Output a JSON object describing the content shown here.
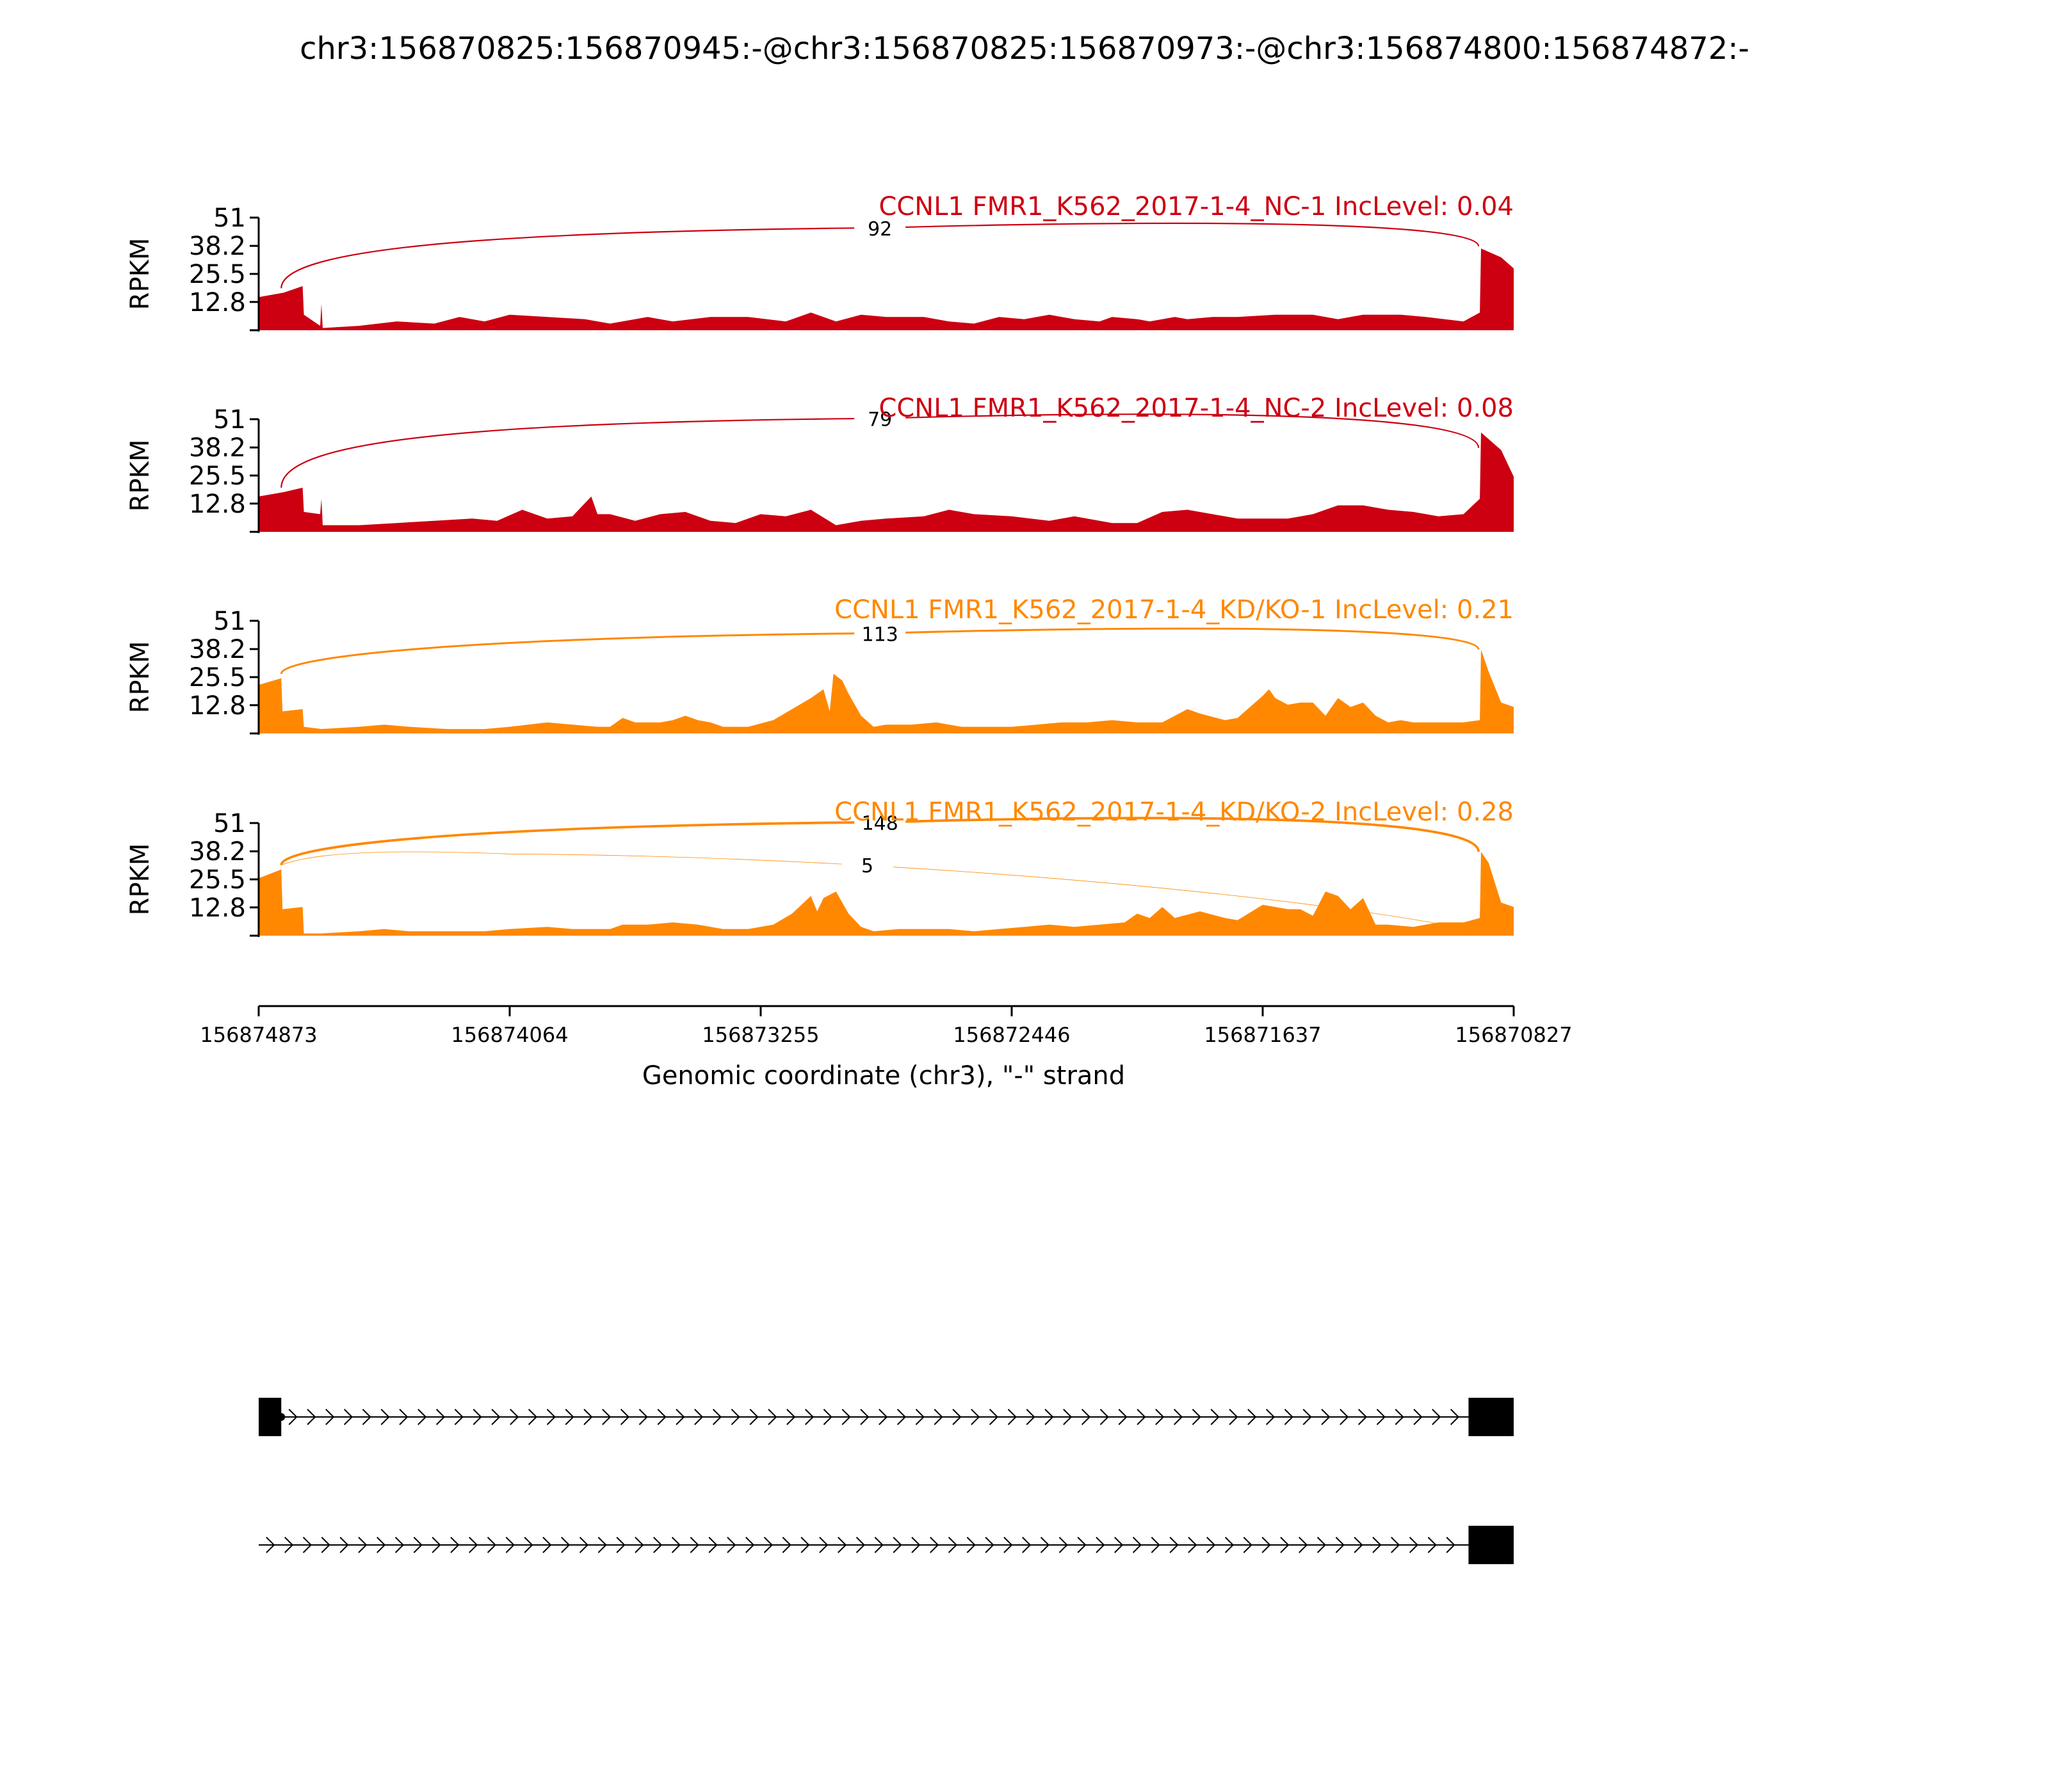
{
  "title": "chr3:156870825:156870945:-@chr3:156870825:156870973:-@chr3:156874800:156874872:-",
  "colors": {
    "nc": "#cc0011",
    "kd": "#ff8800",
    "axis": "#000000"
  },
  "chart_data": {
    "type": "area",
    "title": "chr3:156870825:156870945:-@chr3:156870825:156870973:-@chr3:156874800:156874872:-",
    "xlabel": "Genomic coordinate (chr3), \"-\" strand",
    "ylabel": "RPKM",
    "xlim": [
      156874873,
      156870827
    ],
    "x_ticks": [
      "156874873",
      "156874064",
      "156873255",
      "156872446",
      "156871637",
      "156870827"
    ],
    "ylim": [
      0,
      51
    ],
    "y_ticks": [
      "51",
      "38.2",
      "25.5",
      "12.8"
    ],
    "tracks": [
      {
        "label": "CCNL1 FMR1_K562_2017-1-4_NC-1 IncLevel: 0.04",
        "color_key": "nc",
        "cov_profile": [
          [
            0,
            15
          ],
          [
            2,
            17
          ],
          [
            3.5,
            20
          ],
          [
            3.6,
            7
          ],
          [
            4.9,
            2
          ],
          [
            5,
            12
          ],
          [
            5.1,
            1
          ],
          [
            8,
            2
          ],
          [
            11,
            4
          ],
          [
            14,
            3
          ],
          [
            16,
            6
          ],
          [
            18,
            4
          ],
          [
            20,
            7
          ],
          [
            23,
            6
          ],
          [
            26,
            5
          ],
          [
            28,
            3
          ],
          [
            31,
            6
          ],
          [
            33,
            4
          ],
          [
            36,
            6
          ],
          [
            39,
            6
          ],
          [
            42,
            4
          ],
          [
            44,
            8
          ],
          [
            46,
            4
          ],
          [
            48,
            7
          ],
          [
            50,
            6
          ],
          [
            53,
            6
          ],
          [
            55,
            4
          ],
          [
            57,
            3
          ],
          [
            59,
            6
          ],
          [
            61,
            5
          ],
          [
            63,
            7
          ],
          [
            65,
            5
          ],
          [
            67,
            4
          ],
          [
            68,
            6
          ],
          [
            70,
            5
          ],
          [
            71,
            4
          ],
          [
            73,
            6
          ],
          [
            74,
            5
          ],
          [
            76,
            6
          ],
          [
            78,
            6
          ],
          [
            81,
            7
          ],
          [
            84,
            7
          ],
          [
            86,
            5
          ],
          [
            88,
            7
          ],
          [
            91,
            7
          ],
          [
            93,
            6
          ],
          [
            96,
            4
          ],
          [
            97.3,
            8
          ],
          [
            97.4,
            37
          ],
          [
            99,
            33
          ],
          [
            100,
            28
          ]
        ],
        "junctions": [
          {
            "from": 1.8,
            "to": 97.2,
            "count": "92",
            "peak": 47,
            "lw": 2.2
          }
        ]
      },
      {
        "label": "CCNL1 FMR1_K562_2017-1-4_NC-2 IncLevel: 0.08",
        "color_key": "nc",
        "cov_profile": [
          [
            0,
            16
          ],
          [
            2,
            18
          ],
          [
            3.5,
            20
          ],
          [
            3.6,
            9
          ],
          [
            4.9,
            8
          ],
          [
            5,
            15
          ],
          [
            5.1,
            3
          ],
          [
            8,
            3
          ],
          [
            11,
            4
          ],
          [
            14,
            5
          ],
          [
            17,
            6
          ],
          [
            19,
            5
          ],
          [
            21,
            10
          ],
          [
            23,
            6
          ],
          [
            25,
            7
          ],
          [
            26.5,
            16
          ],
          [
            27,
            8
          ],
          [
            28,
            8
          ],
          [
            30,
            5
          ],
          [
            32,
            8
          ],
          [
            34,
            9
          ],
          [
            36,
            5
          ],
          [
            38,
            4
          ],
          [
            40,
            8
          ],
          [
            42,
            7
          ],
          [
            44,
            10
          ],
          [
            46,
            3
          ],
          [
            48,
            5
          ],
          [
            50,
            6
          ],
          [
            53,
            7
          ],
          [
            55,
            10
          ],
          [
            57,
            8
          ],
          [
            60,
            7
          ],
          [
            63,
            5
          ],
          [
            65,
            7
          ],
          [
            68,
            4
          ],
          [
            70,
            4
          ],
          [
            72,
            9
          ],
          [
            74,
            10
          ],
          [
            76,
            8
          ],
          [
            78,
            6
          ],
          [
            80,
            6
          ],
          [
            82,
            6
          ],
          [
            84,
            8
          ],
          [
            86,
            12
          ],
          [
            88,
            12
          ],
          [
            90,
            10
          ],
          [
            92,
            9
          ],
          [
            94,
            7
          ],
          [
            96,
            8
          ],
          [
            97.3,
            15
          ],
          [
            97.4,
            45
          ],
          [
            99,
            37
          ],
          [
            100,
            25
          ]
        ],
        "junctions": [
          {
            "from": 1.8,
            "to": 97.2,
            "count": "79",
            "peak": 52,
            "lw": 2.2
          }
        ]
      },
      {
        "label": "CCNL1 FMR1_K562_2017-1-4_KD/KO-1 IncLevel: 0.21",
        "color_key": "kd",
        "cov_profile": [
          [
            0,
            22
          ],
          [
            1.8,
            25
          ],
          [
            1.9,
            10
          ],
          [
            3.5,
            11
          ],
          [
            3.6,
            3
          ],
          [
            5,
            2
          ],
          [
            8,
            3
          ],
          [
            10,
            4
          ],
          [
            12,
            3
          ],
          [
            15,
            2
          ],
          [
            18,
            2
          ],
          [
            20,
            3
          ],
          [
            23,
            5
          ],
          [
            25,
            4
          ],
          [
            27,
            3
          ],
          [
            28,
            3
          ],
          [
            29,
            7
          ],
          [
            30,
            5
          ],
          [
            32,
            5
          ],
          [
            33,
            6
          ],
          [
            34,
            8
          ],
          [
            35,
            6
          ],
          [
            36,
            5
          ],
          [
            37,
            3
          ],
          [
            39,
            3
          ],
          [
            41,
            6
          ],
          [
            42.5,
            11
          ],
          [
            44,
            16
          ],
          [
            45,
            20
          ],
          [
            45.5,
            10
          ],
          [
            45.8,
            27
          ],
          [
            46.5,
            24
          ],
          [
            47,
            18
          ],
          [
            48,
            8
          ],
          [
            49,
            3
          ],
          [
            50,
            4
          ],
          [
            52,
            4
          ],
          [
            54,
            5
          ],
          [
            56,
            3
          ],
          [
            58,
            3
          ],
          [
            60,
            3
          ],
          [
            62,
            4
          ],
          [
            64,
            5
          ],
          [
            66,
            5
          ],
          [
            68,
            6
          ],
          [
            70,
            5
          ],
          [
            72,
            5
          ],
          [
            73,
            8
          ],
          [
            74,
            11
          ],
          [
            75,
            9
          ],
          [
            77,
            6
          ],
          [
            78,
            7
          ],
          [
            80,
            17
          ],
          [
            80.5,
            20
          ],
          [
            81,
            16
          ],
          [
            82,
            13
          ],
          [
            83,
            14
          ],
          [
            84,
            14
          ],
          [
            85,
            8
          ],
          [
            86,
            16
          ],
          [
            87,
            12
          ],
          [
            88,
            14
          ],
          [
            89,
            8
          ],
          [
            90,
            5
          ],
          [
            91,
            6
          ],
          [
            92,
            5
          ],
          [
            94,
            5
          ],
          [
            96,
            5
          ],
          [
            97.3,
            6
          ],
          [
            97.4,
            38
          ],
          [
            98,
            28
          ],
          [
            99,
            14
          ],
          [
            100,
            12
          ]
        ],
        "junctions": [
          {
            "from": 1.8,
            "to": 97.2,
            "count": "113",
            "peak": 46,
            "lw": 3
          }
        ]
      },
      {
        "label": "CCNL1 FMR1_K562_2017-1-4_KD/KO-2 IncLevel: 0.28",
        "color_key": "kd",
        "cov_profile": [
          [
            0,
            26
          ],
          [
            1.8,
            30
          ],
          [
            1.9,
            12
          ],
          [
            3.5,
            13
          ],
          [
            3.6,
            1
          ],
          [
            5,
            1
          ],
          [
            8,
            2
          ],
          [
            10,
            3
          ],
          [
            12,
            2
          ],
          [
            15,
            2
          ],
          [
            18,
            2
          ],
          [
            20,
            3
          ],
          [
            23,
            4
          ],
          [
            25,
            3
          ],
          [
            28,
            3
          ],
          [
            29,
            5
          ],
          [
            31,
            5
          ],
          [
            33,
            6
          ],
          [
            35,
            5
          ],
          [
            37,
            3
          ],
          [
            39,
            3
          ],
          [
            41,
            5
          ],
          [
            42.5,
            10
          ],
          [
            44,
            18
          ],
          [
            44.5,
            11
          ],
          [
            45,
            17
          ],
          [
            46,
            20
          ],
          [
            47,
            10
          ],
          [
            48,
            4
          ],
          [
            49,
            2
          ],
          [
            51,
            3
          ],
          [
            53,
            3
          ],
          [
            55,
            3
          ],
          [
            57,
            2
          ],
          [
            59,
            3
          ],
          [
            61,
            4
          ],
          [
            63,
            5
          ],
          [
            65,
            4
          ],
          [
            67,
            5
          ],
          [
            69,
            6
          ],
          [
            70,
            10
          ],
          [
            71,
            8
          ],
          [
            72,
            13
          ],
          [
            73,
            8
          ],
          [
            75,
            11
          ],
          [
            77,
            8
          ],
          [
            78,
            7
          ],
          [
            80,
            14
          ],
          [
            81,
            13
          ],
          [
            82,
            12
          ],
          [
            83,
            12
          ],
          [
            84,
            9
          ],
          [
            85,
            20
          ],
          [
            86,
            18
          ],
          [
            87,
            12
          ],
          [
            88,
            17
          ],
          [
            89,
            5
          ],
          [
            90,
            5
          ],
          [
            92,
            4
          ],
          [
            94,
            6
          ],
          [
            95,
            6
          ],
          [
            96,
            6
          ],
          [
            97.3,
            8
          ],
          [
            97.4,
            38
          ],
          [
            98,
            33
          ],
          [
            99,
            15
          ],
          [
            100,
            13
          ]
        ],
        "junctions": [
          {
            "from": 1.8,
            "to": 97.2,
            "count": "148",
            "peak": 52,
            "lw": 3.8
          },
          {
            "from": 1.8,
            "to": 96.8,
            "count": "5",
            "peak": 37,
            "lw": 0.8,
            "asym": true
          }
        ]
      }
    ],
    "transcripts": [
      {
        "exons": [
          [
            0,
            1.8
          ],
          [
            96.4,
            100
          ]
        ],
        "intron_start": 1.8,
        "start_dot": true
      },
      {
        "exons": [
          [
            96.4,
            100
          ]
        ],
        "intron_start": 0,
        "start_dot": false
      }
    ]
  }
}
